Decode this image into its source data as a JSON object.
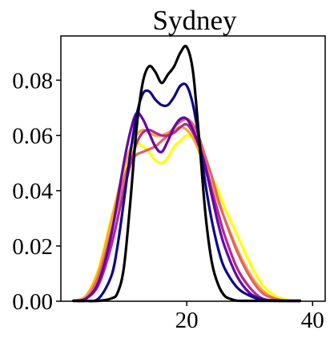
{
  "chart_data": {
    "type": "line",
    "title": "Sydney",
    "xlabel": "",
    "ylabel": "",
    "xlim": [
      0,
      42
    ],
    "ylim": [
      0,
      0.096
    ],
    "x_ticks": [
      {
        "value": 20,
        "label": "20"
      },
      {
        "value": 40,
        "label": "40"
      }
    ],
    "y_ticks": [
      {
        "value": 0.0,
        "label": "0.00"
      },
      {
        "value": 0.02,
        "label": "0.02"
      },
      {
        "value": 0.04,
        "label": "0.04"
      },
      {
        "value": 0.06,
        "label": "0.06"
      },
      {
        "value": 0.08,
        "label": "0.08"
      }
    ],
    "grid": false,
    "legend": "none",
    "series": [
      {
        "color": "#ffff00",
        "x": [
          2,
          4,
          6,
          8,
          10,
          11,
          12,
          13,
          14,
          15,
          16,
          17,
          18,
          19,
          20,
          21,
          22,
          23,
          24,
          25,
          26,
          28,
          30,
          32,
          34,
          36,
          38
        ],
        "y": [
          0.0,
          0.002,
          0.012,
          0.03,
          0.047,
          0.053,
          0.057,
          0.056,
          0.054,
          0.051,
          0.05,
          0.052,
          0.056,
          0.058,
          0.06,
          0.059,
          0.056,
          0.05,
          0.045,
          0.04,
          0.034,
          0.024,
          0.014,
          0.006,
          0.002,
          0.0005,
          0.0
        ]
      },
      {
        "color": "#fca636",
        "x": [
          2,
          4,
          6,
          8,
          10,
          11,
          12,
          13,
          14,
          15,
          16,
          17,
          18,
          19,
          20,
          21,
          22,
          23,
          24,
          25,
          26,
          28,
          30,
          32,
          34,
          36,
          38
        ],
        "y": [
          0.0,
          0.002,
          0.011,
          0.029,
          0.048,
          0.055,
          0.06,
          0.062,
          0.061,
          0.06,
          0.06,
          0.061,
          0.062,
          0.063,
          0.062,
          0.059,
          0.054,
          0.048,
          0.042,
          0.036,
          0.03,
          0.019,
          0.01,
          0.004,
          0.001,
          0.0002,
          0.0
        ]
      },
      {
        "color": "#e16462",
        "x": [
          2,
          4,
          6,
          8,
          10,
          11,
          12,
          13,
          14,
          15,
          16,
          17,
          18,
          19,
          20,
          21,
          22,
          23,
          24,
          25,
          26,
          28,
          30,
          32,
          34,
          36,
          38
        ],
        "y": [
          0.0,
          0.001,
          0.009,
          0.025,
          0.044,
          0.05,
          0.053,
          0.054,
          0.055,
          0.056,
          0.058,
          0.06,
          0.063,
          0.065,
          0.066,
          0.064,
          0.059,
          0.052,
          0.045,
          0.037,
          0.03,
          0.018,
          0.009,
          0.003,
          0.001,
          0.0,
          0.0
        ]
      },
      {
        "color": "#b12a90",
        "x": [
          2,
          4,
          6,
          8,
          10,
          11,
          12,
          13,
          14,
          15,
          16,
          17,
          18,
          19,
          20,
          21,
          22,
          23,
          24,
          25,
          26,
          28,
          30,
          32,
          34,
          36,
          38
        ],
        "y": [
          0.0,
          0.001,
          0.006,
          0.02,
          0.04,
          0.049,
          0.057,
          0.061,
          0.062,
          0.061,
          0.06,
          0.06,
          0.061,
          0.063,
          0.064,
          0.061,
          0.056,
          0.049,
          0.04,
          0.032,
          0.024,
          0.012,
          0.005,
          0.001,
          0.0003,
          0.0,
          0.0
        ]
      },
      {
        "color": "#6a00a8",
        "x": [
          2,
          4,
          6,
          8,
          10,
          11,
          12,
          13,
          14,
          15,
          16,
          17,
          18,
          19,
          20,
          21,
          22,
          23,
          24,
          25,
          26,
          28,
          30,
          32,
          34,
          36,
          38
        ],
        "y": [
          0.0,
          0.001,
          0.007,
          0.024,
          0.05,
          0.061,
          0.068,
          0.066,
          0.061,
          0.056,
          0.054,
          0.058,
          0.063,
          0.066,
          0.066,
          0.062,
          0.056,
          0.048,
          0.038,
          0.028,
          0.02,
          0.009,
          0.003,
          0.0008,
          0.0002,
          0.0,
          0.0
        ]
      },
      {
        "color": "#0d0887",
        "x": [
          2,
          4,
          6,
          8,
          9,
          10,
          11,
          12,
          13,
          14,
          15,
          16,
          17,
          18,
          19,
          20,
          21,
          22,
          23,
          24,
          25,
          26,
          28,
          30,
          32,
          34,
          36,
          38
        ],
        "y": [
          0.0,
          0.0,
          0.001,
          0.009,
          0.02,
          0.036,
          0.053,
          0.067,
          0.075,
          0.076,
          0.073,
          0.071,
          0.071,
          0.074,
          0.078,
          0.078,
          0.071,
          0.058,
          0.042,
          0.029,
          0.019,
          0.012,
          0.005,
          0.002,
          0.0005,
          0.0,
          0.0,
          0.0
        ]
      },
      {
        "color": "#000000",
        "x": [
          2,
          4,
          6,
          8,
          9,
          10,
          11,
          12,
          13,
          14,
          15,
          16,
          17,
          18,
          19,
          20,
          21,
          22,
          23,
          24,
          25,
          26,
          27,
          28,
          30,
          32,
          34,
          38
        ],
        "y": [
          0.0,
          0.0,
          0.0,
          0.001,
          0.003,
          0.012,
          0.035,
          0.062,
          0.079,
          0.085,
          0.083,
          0.079,
          0.082,
          0.085,
          0.09,
          0.092,
          0.083,
          0.058,
          0.031,
          0.014,
          0.006,
          0.002,
          0.0008,
          0.0002,
          0.0,
          0.0,
          0.0,
          0.0
        ]
      }
    ]
  }
}
